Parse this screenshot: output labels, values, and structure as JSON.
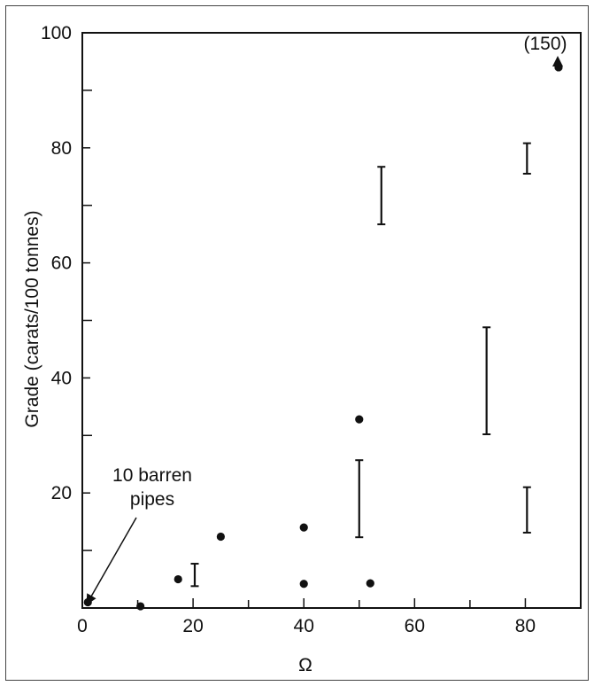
{
  "chart_data": {
    "type": "scatter",
    "title": "",
    "xlabel": "Ω",
    "ylabel": "Grade (carats/100 tonnes)",
    "xlim": [
      0,
      90
    ],
    "ylim": [
      0,
      100
    ],
    "x_ticks": [
      0,
      20,
      40,
      60,
      80
    ],
    "y_ticks": [
      20,
      40,
      60,
      80,
      100
    ],
    "grid": false,
    "legend": "none",
    "points": [
      {
        "x": 1,
        "y": 1
      },
      {
        "x": 10.5,
        "y": 0.3
      },
      {
        "x": 17.3,
        "y": 5
      },
      {
        "x": 25,
        "y": 12.4
      },
      {
        "x": 40,
        "y": 14
      },
      {
        "x": 40,
        "y": 4.2
      },
      {
        "x": 50,
        "y": 32.8
      },
      {
        "x": 52,
        "y": 4.3
      },
      {
        "x": 86,
        "y": 94
      }
    ],
    "ranges": [
      {
        "x": 20.3,
        "low": 3.8,
        "high": 7.7
      },
      {
        "x": 50,
        "low": 12.3,
        "high": 25.7
      },
      {
        "x": 54,
        "low": 66.7,
        "high": 76.7
      },
      {
        "x": 73,
        "low": 30.2,
        "high": 48.8
      },
      {
        "x": 80.3,
        "low": 13.1,
        "high": 21
      },
      {
        "x": 80.3,
        "low": 75.5,
        "high": 80.8
      }
    ],
    "annotations": [
      {
        "text_lines": [
          "10 barren",
          "pipes"
        ],
        "points_to": {
          "x": 1,
          "y": 1
        }
      },
      {
        "text": "(150)",
        "points_to": {
          "x": 86,
          "y": 94
        }
      }
    ]
  }
}
